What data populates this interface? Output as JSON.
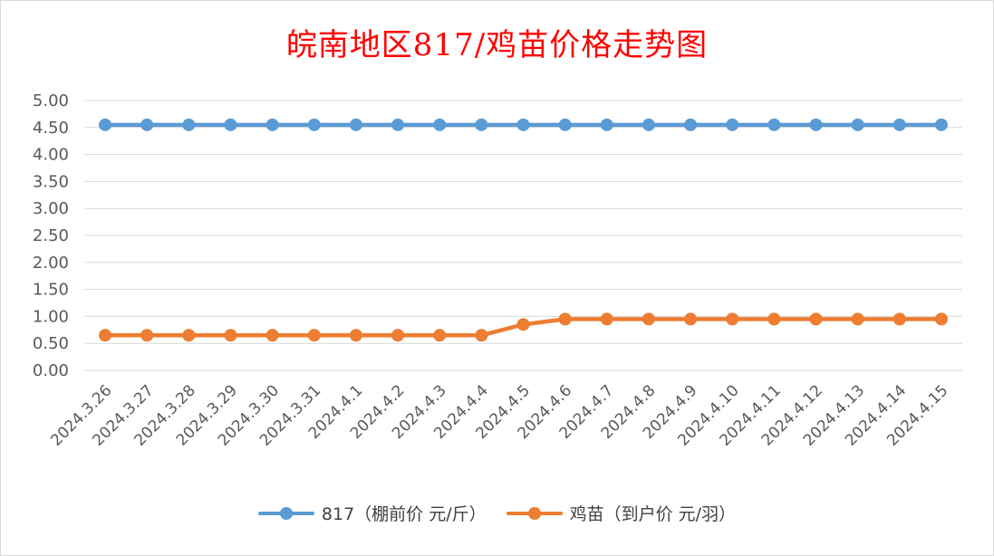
{
  "chart_data": {
    "type": "line",
    "title": "皖南地区817/鸡苗价格走势图",
    "categories": [
      "2024.3.26",
      "2024.3.27",
      "2024.3.28",
      "2024.3.29",
      "2024.3.30",
      "2024.3.31",
      "2024.4.1",
      "2024.4.2",
      "2024.4.3",
      "2024.4.4",
      "2024.4.5",
      "2024.4.6",
      "2024.4.7",
      "2024.4.8",
      "2024.4.9",
      "2024.4.10",
      "2024.4.11",
      "2024.4.12",
      "2024.4.13",
      "2024.4.14",
      "2024.4.15"
    ],
    "series": [
      {
        "name": "817（棚前价 元/斤）",
        "color": "#5b9bd5",
        "values": [
          4.55,
          4.55,
          4.55,
          4.55,
          4.55,
          4.55,
          4.55,
          4.55,
          4.55,
          4.55,
          4.55,
          4.55,
          4.55,
          4.55,
          4.55,
          4.55,
          4.55,
          4.55,
          4.55,
          4.55,
          4.55
        ]
      },
      {
        "name": "鸡苗（到户价 元/羽）",
        "color": "#ed7d31",
        "values": [
          0.65,
          0.65,
          0.65,
          0.65,
          0.65,
          0.65,
          0.65,
          0.65,
          0.65,
          0.65,
          0.85,
          0.95,
          0.95,
          0.95,
          0.95,
          0.95,
          0.95,
          0.95,
          0.95,
          0.95,
          0.95
        ]
      }
    ],
    "ylim": [
      0,
      5
    ],
    "yticks": [
      "0.00",
      "0.50",
      "1.00",
      "1.50",
      "2.00",
      "2.50",
      "3.00",
      "3.50",
      "4.00",
      "4.50",
      "5.00"
    ],
    "xlabel": "",
    "ylabel": "",
    "grid": true,
    "legend_position": "bottom",
    "title_color": "#ff0000"
  }
}
